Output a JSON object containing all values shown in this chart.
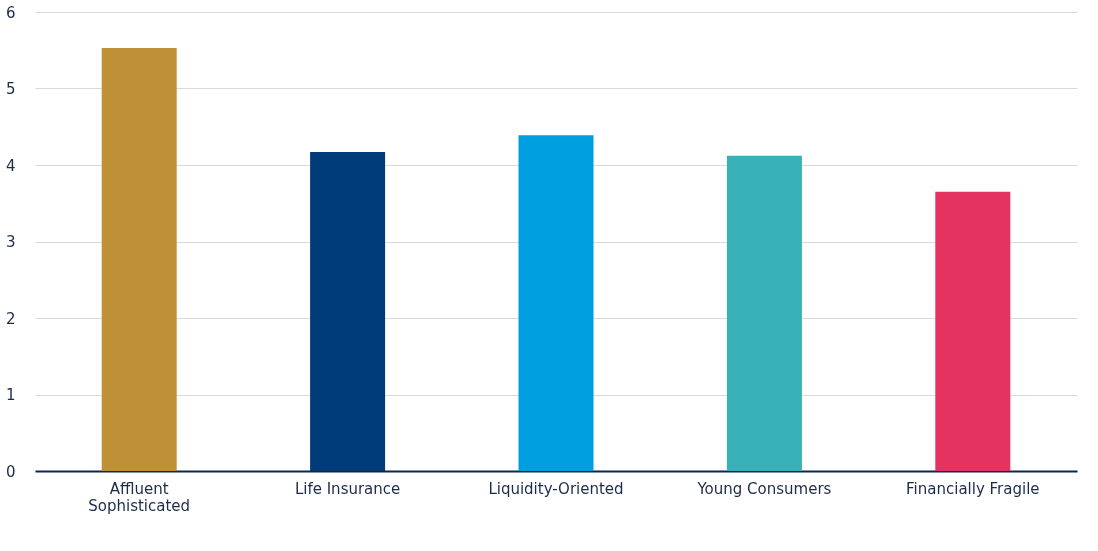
{
  "chart_data": {
    "type": "bar",
    "categories": [
      "Affluent Sophisticated",
      "Life Insurance",
      "Liquidity-Oriented",
      "Young Consumers",
      "Financially Fragile"
    ],
    "values": [
      5.53,
      4.17,
      4.39,
      4.12,
      3.65
    ],
    "colors": [
      "#c09036",
      "#003b7a",
      "#009fe0",
      "#38b0b7",
      "#e5335f"
    ],
    "ylim": [
      0,
      6
    ],
    "yticks": [
      0,
      1,
      2,
      3,
      4,
      5,
      6
    ],
    "grid": "y",
    "legend": false
  }
}
